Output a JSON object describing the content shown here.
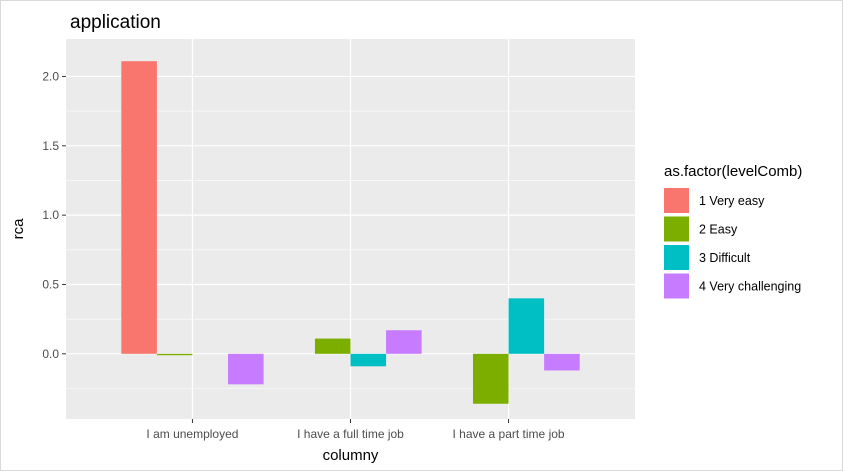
{
  "chart_data": {
    "type": "bar",
    "title": "application",
    "xlabel": "columny",
    "ylabel": "rca",
    "categories": [
      "I am unemployed",
      "I have a full time job",
      "I have a part time job"
    ],
    "ylim": [
      -0.47,
      2.27
    ],
    "yticks": [
      0.0,
      0.5,
      1.0,
      1.5,
      2.0
    ],
    "ytick_labels": [
      "0.0",
      "0.5",
      "1.0",
      "1.5",
      "2.0"
    ],
    "grid": true,
    "legend_position": "right",
    "legend_title": "as.factor(levelComb)",
    "series": [
      {
        "name": "1 Very easy",
        "color": "#F8766D",
        "values": [
          2.11,
          null,
          null
        ]
      },
      {
        "name": "2 Easy",
        "color": "#7CAE00",
        "values": [
          -0.01,
          0.11,
          -0.36
        ]
      },
      {
        "name": "3 Difficult",
        "color": "#00BFC4",
        "values": [
          null,
          -0.09,
          0.4
        ]
      },
      {
        "name": "4 Very challenging",
        "color": "#C77CFF",
        "values": [
          -0.22,
          0.17,
          -0.12
        ]
      }
    ]
  }
}
